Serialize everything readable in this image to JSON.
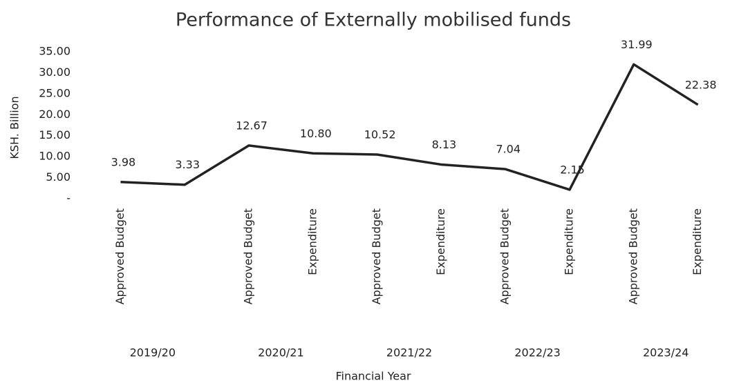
{
  "chart_data": {
    "type": "line",
    "title": "Performance of Externally mobilised funds",
    "x_label": "Financial Year",
    "y_label": "KSH. Billion",
    "categories": [
      "Approved Budget",
      null,
      "Approved Budget",
      "Expenditure",
      "Approved Budget",
      "Expenditure",
      "Approved Budget",
      "Expenditure",
      "Approved Budget",
      "Expenditure"
    ],
    "group_labels": [
      "2019/20",
      "2020/21",
      "2021/22",
      "2022/23",
      "2023/24"
    ],
    "values": [
      3.98,
      3.33,
      12.67,
      10.8,
      10.52,
      8.13,
      7.04,
      2.15,
      31.99,
      22.38
    ],
    "value_labels": [
      "3.98",
      "3.33",
      "12.67",
      "10.80",
      "10.52",
      "8.13",
      "7.04",
      "2.15",
      "31.99",
      "22.38"
    ],
    "color": "#222222",
    "ylim": [
      0,
      35
    ],
    "yticks": [
      {
        "value": 0,
        "label": "-"
      },
      {
        "value": 5,
        "label": "5.00"
      },
      {
        "value": 10,
        "label": "10.00"
      },
      {
        "value": 15,
        "label": "15.00"
      },
      {
        "value": 20,
        "label": "20.00"
      },
      {
        "value": 25,
        "label": "25.00"
      },
      {
        "value": 30,
        "label": "30.00"
      },
      {
        "value": 35,
        "label": "35.00"
      }
    ],
    "grid": false
  }
}
